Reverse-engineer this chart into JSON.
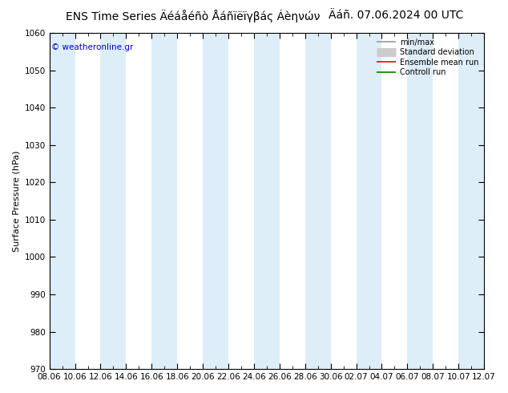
{
  "title_main": "ENS Time Series Äéáåéñò Åáñïëïγβáς Áèηνών",
  "title_date": "Äáñ. 07.06.2024 00 UTC",
  "ylabel": "Surface Pressure (hPa)",
  "watermark": "© weatheronline.gr",
  "ylim": [
    970,
    1060
  ],
  "yticks": [
    970,
    980,
    990,
    1000,
    1010,
    1020,
    1030,
    1040,
    1050,
    1060
  ],
  "xtick_labels": [
    "08.06",
    "10.06",
    "12.06",
    "14.06",
    "16.06",
    "18.06",
    "20.06",
    "22.06",
    "24.06",
    "26.06",
    "28.06",
    "30.06",
    "02.07",
    "04.07",
    "06.07",
    "08.07",
    "10.07",
    "12.07"
  ],
  "num_xticks": 18,
  "shading_color": "#ddeef8",
  "background_color": "#ffffff",
  "legend_items": [
    {
      "label": "min/max",
      "color": "#999999",
      "lw": 1.2,
      "type": "line"
    },
    {
      "label": "Standard deviation",
      "color": "#cccccc",
      "lw": 8,
      "type": "line"
    },
    {
      "label": "Ensemble mean run",
      "color": "#ff0000",
      "lw": 1.2,
      "type": "line"
    },
    {
      "label": "Controll run",
      "color": "#008000",
      "lw": 1.2,
      "type": "line"
    }
  ],
  "watermark_color": "#0000cc",
  "title_fontsize": 10,
  "ylabel_fontsize": 8,
  "tick_fontsize": 7.5,
  "legend_fontsize": 7
}
